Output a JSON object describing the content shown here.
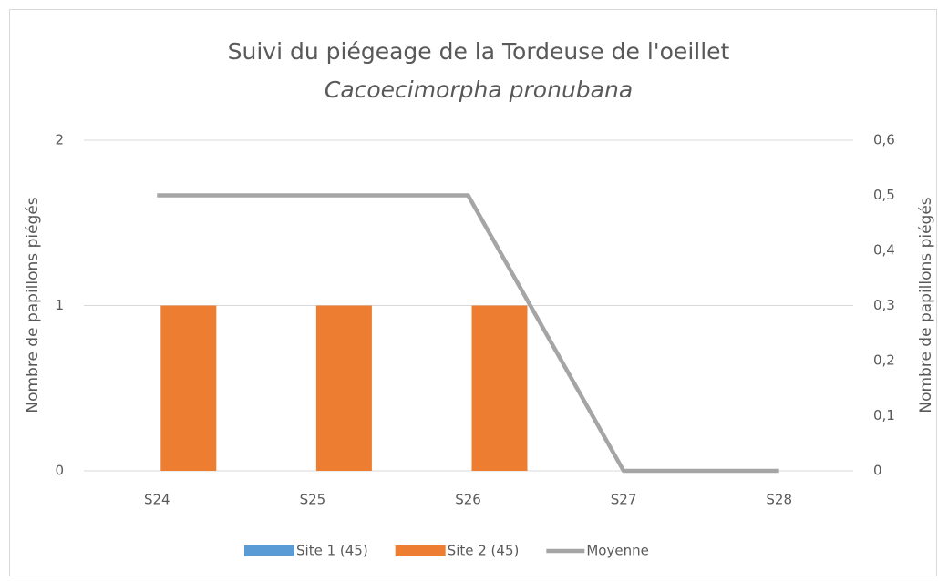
{
  "chart_data": {
    "type": "bar",
    "title": "Suivi du piégeage de la Tordeuse de l'oeillet",
    "subtitle": "Cacoecimorpha pronubana",
    "y_label": "Nombre de papillons piégés",
    "y2_label": "Nombre de papillons piégés",
    "categories": [
      "S24",
      "S25",
      "S26",
      "S27",
      "S28"
    ],
    "series": [
      {
        "name": "Site 1 (45)",
        "color": "#5b9bd5",
        "values": [
          0,
          0,
          0,
          0,
          0
        ]
      },
      {
        "name": "Site 2 (45)",
        "color": "#ed7d31",
        "values": [
          1,
          1,
          1,
          0,
          0
        ]
      },
      {
        "name": "Moyenne",
        "color": "#a5a5a5",
        "type": "line",
        "axis": "y2",
        "values": [
          0.5,
          0.5,
          0.5,
          0,
          0
        ]
      }
    ],
    "ylim": [
      0,
      2
    ],
    "yticks": [
      0,
      1,
      2
    ],
    "y2lim": [
      0,
      0.6
    ],
    "y2ticks": [
      0,
      {
        "value": 0.1,
        "label": "0,1"
      },
      {
        "value": 0.2,
        "label": "0,2"
      },
      {
        "value": 0.3,
        "label": "0,3"
      },
      {
        "value": 0.4,
        "label": "0,4"
      },
      {
        "value": 0.5,
        "label": "0,5"
      },
      {
        "value": 0.6,
        "label": "0,6"
      }
    ],
    "grid": true,
    "legend": "bottom"
  }
}
